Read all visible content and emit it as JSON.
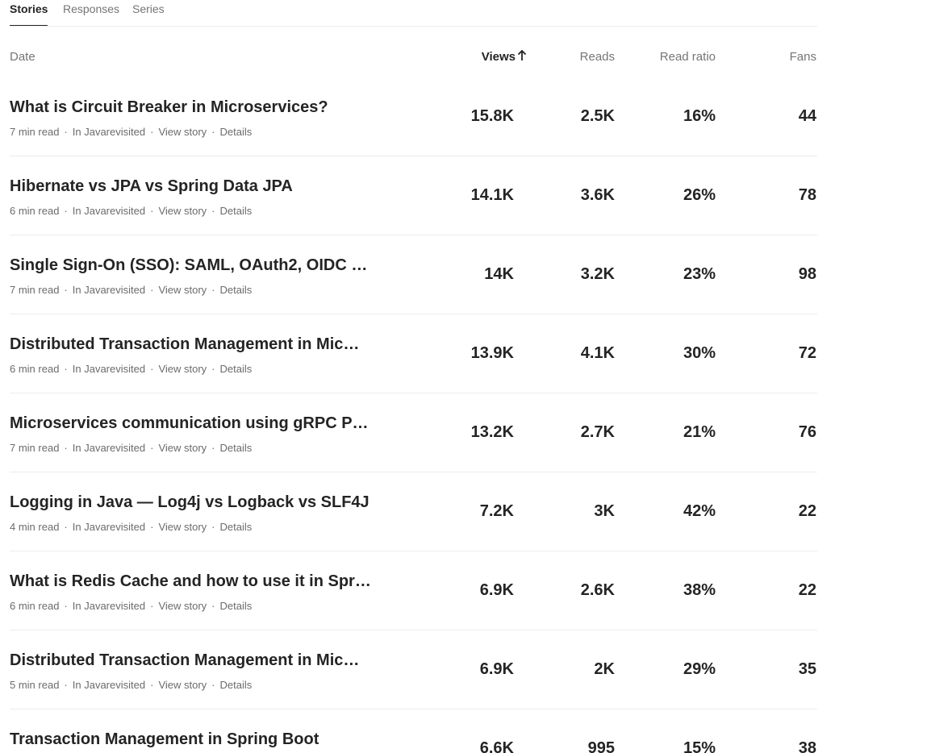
{
  "tabs": [
    {
      "label": "Stories",
      "active": true
    },
    {
      "label": "Responses",
      "active": false
    },
    {
      "label": "Series",
      "active": false
    }
  ],
  "table": {
    "headers": {
      "date": "Date",
      "views": "Views",
      "reads": "Reads",
      "read_ratio": "Read ratio",
      "fans": "Fans"
    },
    "sort": {
      "column": "views",
      "icon": "arrow-up-icon"
    },
    "meta_links": {
      "view_story": "View story",
      "details": "Details"
    },
    "rows": [
      {
        "title": "What is Circuit Breaker in Microservices?",
        "read_time": "7 min read",
        "publication": "In Javarevisited",
        "views": "15.8K",
        "reads": "2.5K",
        "read_ratio": "16%",
        "fans": "44"
      },
      {
        "title": "Hibernate vs JPA vs Spring Data JPA",
        "read_time": "6 min read",
        "publication": "In Javarevisited",
        "views": "14.1K",
        "reads": "3.6K",
        "read_ratio": "26%",
        "fans": "78"
      },
      {
        "title": "Single Sign-On (SSO): SAML, OAuth2, OIDC …",
        "read_time": "7 min read",
        "publication": "In Javarevisited",
        "views": "14K",
        "reads": "3.2K",
        "read_ratio": "23%",
        "fans": "98"
      },
      {
        "title": "Distributed Transaction Management in Mic…",
        "read_time": "6 min read",
        "publication": "In Javarevisited",
        "views": "13.9K",
        "reads": "4.1K",
        "read_ratio": "30%",
        "fans": "72"
      },
      {
        "title": "Microservices communication using gRPC P…",
        "read_time": "7 min read",
        "publication": "In Javarevisited",
        "views": "13.2K",
        "reads": "2.7K",
        "read_ratio": "21%",
        "fans": "76"
      },
      {
        "title": "Logging in Java — Log4j vs Logback vs SLF4J",
        "read_time": "4 min read",
        "publication": "In Javarevisited",
        "views": "7.2K",
        "reads": "3K",
        "read_ratio": "42%",
        "fans": "22"
      },
      {
        "title": "What is Redis Cache and how to use it in Spr…",
        "read_time": "6 min read",
        "publication": "In Javarevisited",
        "views": "6.9K",
        "reads": "2.6K",
        "read_ratio": "38%",
        "fans": "22"
      },
      {
        "title": "Distributed Transaction Management in Mic…",
        "read_time": "5 min read",
        "publication": "In Javarevisited",
        "views": "6.9K",
        "reads": "2K",
        "read_ratio": "29%",
        "fans": "35"
      },
      {
        "title": "Transaction Management in Spring Boot",
        "read_time": "",
        "publication": "",
        "views": "6.6K",
        "reads": "995",
        "read_ratio": "15%",
        "fans": "38"
      }
    ]
  }
}
